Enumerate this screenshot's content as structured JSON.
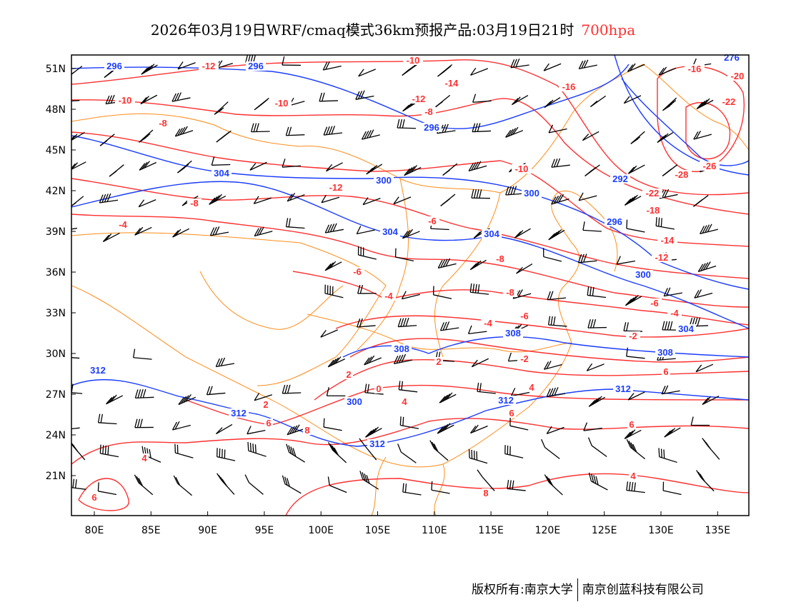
{
  "title": {
    "main": "2026年03月19日WRF/cmaq模式36km预报产品:03月19日21时",
    "level": "700hpa"
  },
  "footer": {
    "copyright": "版权所有:南京大学",
    "company": "南京创蓝科技有限公司"
  },
  "axes": {
    "lon_ticks": [
      "80E",
      "85E",
      "90E",
      "95E",
      "100E",
      "105E",
      "110E",
      "115E",
      "120E",
      "125E",
      "130E",
      "135E"
    ],
    "lat_ticks": [
      "51N",
      "48N",
      "45N",
      "42N",
      "39N",
      "36N",
      "33N",
      "30N",
      "27N",
      "24N",
      "21N"
    ]
  },
  "colors": {
    "temperature": "#ff3030",
    "height": "#1a3cff",
    "border": "#ff8c1a",
    "wind": "#000000"
  },
  "temperature_labels": [
    "-12",
    "-10",
    "-16",
    "-14",
    "-12",
    "-10",
    "-10",
    "-8",
    "-16",
    "-20",
    "-22",
    "-26",
    "-28",
    "-22",
    "-18",
    "-14",
    "-12",
    "-10",
    "-8",
    "-12",
    "-8",
    "-6",
    "-4",
    "-8",
    "-6",
    "-4",
    "-8",
    "-6",
    "-6",
    "-4",
    "-2",
    "-4",
    "-2",
    "2",
    "0",
    "4",
    "2",
    "6",
    "4",
    "6",
    "6",
    "4",
    "6",
    "8",
    "8",
    "6",
    "4",
    "2"
  ],
  "height_labels": [
    "296",
    "296",
    "296",
    "304",
    "300",
    "300",
    "296",
    "304",
    "304",
    "300",
    "304",
    "308",
    "308",
    "308",
    "312",
    "312",
    "312",
    "312",
    "312",
    "276",
    "292",
    "300"
  ]
}
